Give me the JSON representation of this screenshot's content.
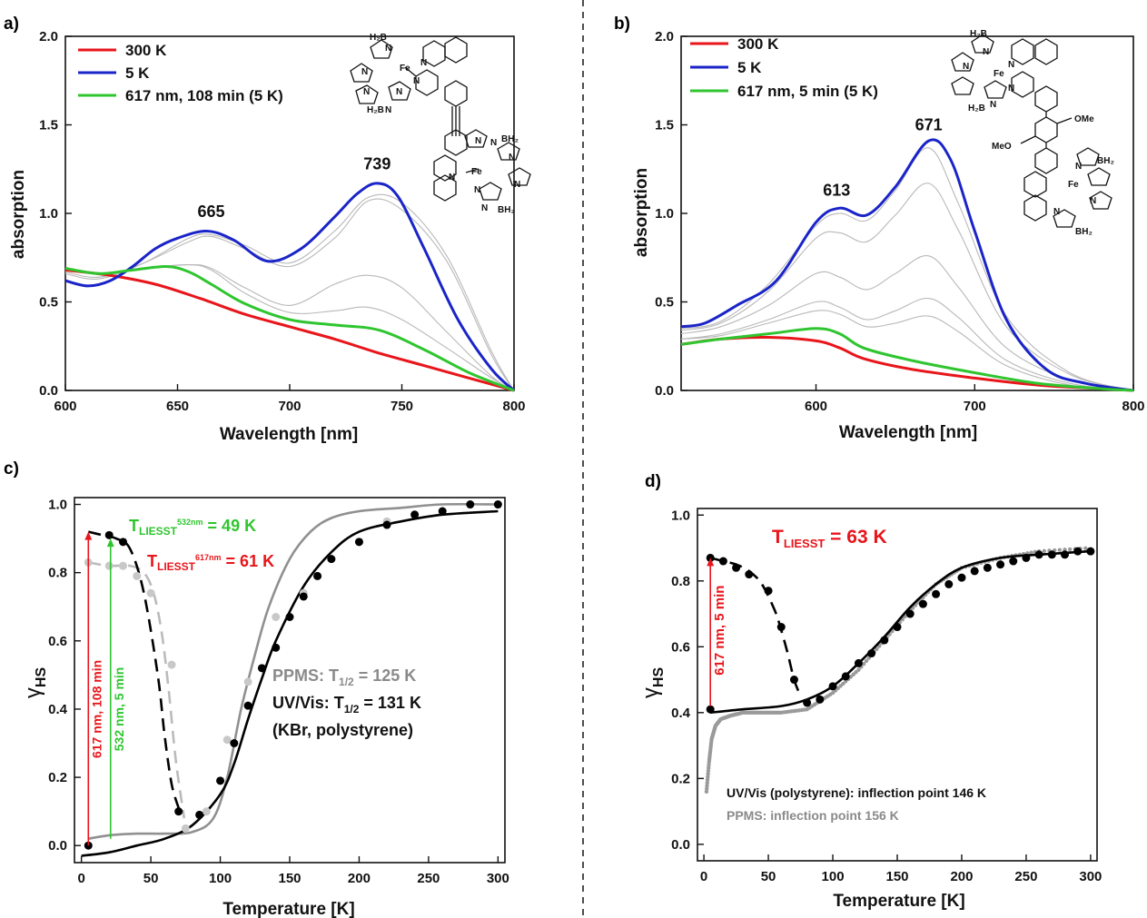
{
  "chart_data": [
    {
      "id": "a",
      "type": "line",
      "panel_label": "a)",
      "xlabel": "Wavelength [nm]",
      "ylabel": "absorption",
      "xlim": [
        600,
        800
      ],
      "ylim": [
        0,
        2.0
      ],
      "xticks": [
        600,
        650,
        700,
        750,
        800
      ],
      "yticks": [
        0.0,
        0.5,
        1.0,
        1.5,
        2.0
      ],
      "legend_position": "top-left",
      "series": [
        {
          "name": "300 K",
          "color": "#e8151b",
          "x": [
            600,
            620,
            640,
            660,
            680,
            700,
            720,
            740,
            760,
            780,
            800
          ],
          "y": [
            0.68,
            0.65,
            0.6,
            0.52,
            0.43,
            0.36,
            0.29,
            0.21,
            0.14,
            0.07,
            0.0
          ]
        },
        {
          "name": "5 K",
          "color": "#1a24c8",
          "x": [
            600,
            610,
            620,
            630,
            640,
            650,
            663,
            675,
            690,
            705,
            720,
            730,
            739,
            748,
            760,
            775,
            790,
            800
          ],
          "y": [
            0.62,
            0.59,
            0.62,
            0.7,
            0.8,
            0.86,
            0.9,
            0.85,
            0.73,
            0.8,
            0.98,
            1.11,
            1.17,
            1.1,
            0.8,
            0.4,
            0.12,
            0.0
          ]
        },
        {
          "name": "617 nm, 108 min (5 K)",
          "color": "#2fc52f",
          "x": [
            600,
            615,
            630,
            645,
            655,
            665,
            680,
            700,
            720,
            740,
            760,
            780,
            800
          ],
          "y": [
            0.69,
            0.66,
            0.68,
            0.7,
            0.67,
            0.6,
            0.49,
            0.4,
            0.37,
            0.34,
            0.23,
            0.1,
            0.0
          ]
        },
        {
          "name": "",
          "color": "#b8b8b8",
          "x": [
            600,
            615,
            635,
            655,
            665,
            680,
            700,
            720,
            735,
            750,
            770,
            790,
            800
          ],
          "y": [
            0.69,
            0.66,
            0.69,
            0.71,
            0.69,
            0.58,
            0.48,
            0.6,
            0.65,
            0.58,
            0.33,
            0.08,
            0.0
          ]
        },
        {
          "name": "",
          "color": "#b8b8b8",
          "x": [
            600,
            615,
            635,
            655,
            665,
            680,
            700,
            720,
            735,
            750,
            770,
            790,
            800
          ],
          "y": [
            0.68,
            0.66,
            0.69,
            0.71,
            0.68,
            0.55,
            0.44,
            0.45,
            0.47,
            0.4,
            0.24,
            0.07,
            0.0
          ]
        },
        {
          "name": "",
          "color": "#b8b8b8",
          "x": [
            600,
            615,
            635,
            655,
            665,
            680,
            700,
            720,
            735,
            750,
            770,
            790,
            800
          ],
          "y": [
            0.67,
            0.64,
            0.72,
            0.84,
            0.87,
            0.8,
            0.7,
            0.86,
            1.07,
            1.02,
            0.73,
            0.2,
            0.0
          ]
        },
        {
          "name": "",
          "color": "#b8b8b8",
          "x": [
            600,
            615,
            635,
            655,
            665,
            680,
            700,
            720,
            735,
            750,
            770,
            790,
            800
          ],
          "y": [
            0.66,
            0.63,
            0.72,
            0.86,
            0.88,
            0.82,
            0.72,
            0.9,
            1.09,
            1.06,
            0.76,
            0.22,
            0.0
          ]
        }
      ],
      "annotations": [
        {
          "text": "665",
          "x": 665,
          "y": 0.98
        },
        {
          "text": "739",
          "x": 739,
          "y": 1.25
        }
      ]
    },
    {
      "id": "b",
      "type": "line",
      "panel_label": "b)",
      "xlabel": "Wavelength [nm]",
      "ylabel": "absorption",
      "xlim": [
        515,
        800
      ],
      "ylim": [
        0,
        2.0
      ],
      "xticks": [
        600,
        700,
        800
      ],
      "yticks": [
        0.0,
        0.5,
        1.0,
        1.5,
        2.0
      ],
      "legend_position": "top-left",
      "series": [
        {
          "name": "300 K",
          "color": "#e8151b",
          "x": [
            515,
            540,
            570,
            600,
            615,
            630,
            660,
            700,
            740,
            780,
            800
          ],
          "y": [
            0.26,
            0.29,
            0.3,
            0.28,
            0.24,
            0.18,
            0.12,
            0.07,
            0.03,
            0.01,
            0.0
          ]
        },
        {
          "name": "5 K",
          "color": "#1a24c8",
          "x": [
            515,
            530,
            550,
            575,
            600,
            615,
            632,
            650,
            671,
            685,
            700,
            720,
            745,
            770,
            800
          ],
          "y": [
            0.36,
            0.38,
            0.48,
            0.62,
            0.95,
            1.03,
            0.99,
            1.15,
            1.41,
            1.3,
            0.9,
            0.4,
            0.12,
            0.04,
            0.0
          ]
        },
        {
          "name": "617 nm, 5 min (5 K)",
          "color": "#2fc52f",
          "x": [
            515,
            540,
            570,
            600,
            615,
            630,
            660,
            700,
            740,
            780,
            800
          ],
          "y": [
            0.26,
            0.29,
            0.32,
            0.35,
            0.32,
            0.24,
            0.17,
            0.1,
            0.04,
            0.01,
            0.0
          ]
        },
        {
          "name": "",
          "color": "#b8b8b8",
          "x": [
            515,
            540,
            570,
            600,
            615,
            632,
            650,
            671,
            690,
            720,
            760,
            800
          ],
          "y": [
            0.29,
            0.31,
            0.38,
            0.45,
            0.43,
            0.36,
            0.38,
            0.42,
            0.33,
            0.14,
            0.03,
            0.0
          ]
        },
        {
          "name": "",
          "color": "#b8b8b8",
          "x": [
            515,
            540,
            570,
            600,
            615,
            632,
            650,
            671,
            690,
            720,
            760,
            800
          ],
          "y": [
            0.29,
            0.32,
            0.4,
            0.5,
            0.47,
            0.4,
            0.45,
            0.52,
            0.41,
            0.17,
            0.04,
            0.0
          ]
        },
        {
          "name": "",
          "color": "#b8b8b8",
          "x": [
            515,
            540,
            570,
            600,
            615,
            632,
            650,
            671,
            690,
            720,
            760,
            800
          ],
          "y": [
            0.32,
            0.36,
            0.48,
            0.66,
            0.64,
            0.57,
            0.66,
            0.76,
            0.58,
            0.24,
            0.06,
            0.0
          ]
        },
        {
          "name": "",
          "color": "#b8b8b8",
          "x": [
            515,
            540,
            570,
            600,
            615,
            632,
            650,
            671,
            690,
            720,
            760,
            800
          ],
          "y": [
            0.34,
            0.38,
            0.56,
            0.86,
            0.89,
            0.84,
            0.99,
            1.17,
            0.9,
            0.36,
            0.09,
            0.0
          ]
        },
        {
          "name": "",
          "color": "#b8b8b8",
          "x": [
            515,
            540,
            570,
            600,
            615,
            632,
            650,
            671,
            690,
            720,
            760,
            800
          ],
          "y": [
            0.35,
            0.39,
            0.6,
            0.93,
            1.0,
            0.96,
            1.13,
            1.37,
            1.05,
            0.42,
            0.1,
            0.0
          ]
        }
      ],
      "annotations": [
        {
          "text": "613",
          "x": 613,
          "y": 1.1
        },
        {
          "text": "671",
          "x": 671,
          "y": 1.47
        }
      ]
    },
    {
      "id": "c",
      "type": "scatter",
      "panel_label": "c)",
      "xlabel": "Temperature [K]",
      "ylabel": "γ",
      "ylabel_sub": "HS",
      "xlim": [
        -5,
        305
      ],
      "ylim": [
        -0.05,
        1.02
      ],
      "xticks": [
        0,
        50,
        100,
        150,
        200,
        250,
        300
      ],
      "yticks": [
        0.0,
        0.2,
        0.4,
        0.6,
        0.8,
        1.0
      ],
      "series": [
        {
          "name": "UV/Vis points",
          "color": "#000000",
          "x": [
            5,
            20,
            30,
            70,
            85,
            100,
            110,
            120,
            130,
            140,
            150,
            160,
            170,
            180,
            200,
            220,
            240,
            260,
            280,
            300
          ],
          "y": [
            0.0,
            0.91,
            0.89,
            0.1,
            0.09,
            0.19,
            0.3,
            0.41,
            0.52,
            0.58,
            0.67,
            0.73,
            0.79,
            0.84,
            0.89,
            0.94,
            0.97,
            0.98,
            1.0,
            1.0
          ]
        },
        {
          "name": "PPMS points",
          "color": "#c8c8c8",
          "x": [
            5,
            20,
            30,
            40,
            50,
            65,
            75,
            90,
            105,
            120,
            140,
            160,
            180,
            200,
            220
          ],
          "y": [
            0.83,
            0.82,
            0.82,
            0.79,
            0.74,
            0.53,
            0.05,
            0.1,
            0.31,
            0.48,
            0.67,
            0.74,
            0.84,
            0.89,
            0.95
          ]
        },
        {
          "name": "UV/Vis fit",
          "color": "#000000",
          "x": [
            0,
            20,
            40,
            60,
            80,
            100,
            110,
            120,
            130,
            140,
            160,
            180,
            200,
            230,
            260,
            300
          ],
          "y": [
            -0.03,
            -0.02,
            0.0,
            0.02,
            0.06,
            0.15,
            0.24,
            0.37,
            0.49,
            0.6,
            0.76,
            0.86,
            0.92,
            0.95,
            0.97,
            0.98
          ]
        },
        {
          "name": "PPMS curve",
          "color": "#909090",
          "x": [
            5,
            20,
            40,
            60,
            80,
            95,
            105,
            115,
            125,
            135,
            150,
            165,
            180,
            200,
            230,
            260,
            300
          ],
          "y": [
            0.02,
            0.03,
            0.035,
            0.035,
            0.04,
            0.08,
            0.2,
            0.4,
            0.56,
            0.7,
            0.84,
            0.92,
            0.96,
            0.98,
            0.99,
            1.0,
            1.0
          ]
        },
        {
          "name": "LIESST 617 nm",
          "color": "#000000",
          "x": [
            5,
            15,
            25,
            35,
            45,
            55,
            60,
            65,
            70
          ],
          "y": [
            0.92,
            0.91,
            0.9,
            0.87,
            0.74,
            0.5,
            0.32,
            0.18,
            0.11
          ]
        },
        {
          "name": "LIESST 532 nm",
          "color": "#bbbbbb",
          "x": [
            5,
            20,
            35,
            45,
            52,
            58,
            63,
            68,
            74
          ],
          "y": [
            0.83,
            0.82,
            0.82,
            0.8,
            0.74,
            0.62,
            0.45,
            0.25,
            0.08
          ]
        }
      ],
      "arrows": [
        {
          "x": 5,
          "y_from": 0.0,
          "y_to": 0.92,
          "color": "#e8151b",
          "label": "617 nm, 108 min"
        },
        {
          "x": 21,
          "y_from": 0.02,
          "y_to": 0.9,
          "color": "#2fc52f",
          "label": "532 nm, 5 min"
        }
      ],
      "texts": {
        "liesst_green_pre": "T",
        "liesst_green_sub": "LIESST",
        "liesst_green_sup": "532nm",
        "liesst_green_post": " = 49 K",
        "liesst_red_pre": "T",
        "liesst_red_sub": "LIESST",
        "liesst_red_sup": "617nm",
        "liesst_red_post": " = 61 K",
        "ppms_pre": "PPMS:  T",
        "ppms_sub": "1/2",
        "ppms_post": " = 125 K",
        "uvvis_pre": "UV/Vis: T",
        "uvvis_sub": "1/2",
        "uvvis_post": " = 131 K",
        "matrix": "(KBr, polystyrene)"
      }
    },
    {
      "id": "d",
      "type": "scatter",
      "panel_label": "d)",
      "xlabel": "Temperature [K]",
      "ylabel": "γ",
      "ylabel_sub": "HS",
      "xlim": [
        -5,
        305
      ],
      "ylim": [
        -0.05,
        1.02
      ],
      "xticks": [
        0,
        50,
        100,
        150,
        200,
        250,
        300
      ],
      "yticks": [
        0.0,
        0.2,
        0.4,
        0.6,
        0.8,
        1.0
      ],
      "series": [
        {
          "name": "UV/Vis points",
          "color": "#000000",
          "x": [
            5,
            15,
            25,
            35,
            50,
            60,
            70,
            80,
            90,
            100,
            110,
            120,
            130,
            140,
            150,
            160,
            170,
            180,
            190,
            200,
            210,
            220,
            230,
            240,
            250,
            260,
            270,
            280,
            290,
            300
          ],
          "y": [
            0.87,
            0.86,
            0.84,
            0.82,
            0.77,
            0.66,
            0.5,
            0.43,
            0.44,
            0.48,
            0.51,
            0.55,
            0.58,
            0.62,
            0.66,
            0.7,
            0.73,
            0.76,
            0.79,
            0.81,
            0.83,
            0.84,
            0.85,
            0.86,
            0.87,
            0.88,
            0.88,
            0.88,
            0.89,
            0.89
          ]
        },
        {
          "name": "LIESST dashed",
          "color": "#000000",
          "x": [
            5,
            15,
            25,
            35,
            45,
            55,
            60,
            65,
            70,
            75
          ],
          "y": [
            0.87,
            0.86,
            0.85,
            0.83,
            0.79,
            0.71,
            0.65,
            0.58,
            0.5,
            0.45
          ]
        },
        {
          "name": "UV/Vis fit",
          "color": "#000000",
          "x": [
            5,
            30,
            60,
            80,
            100,
            120,
            140,
            160,
            180,
            200,
            230,
            260,
            300
          ],
          "y": [
            0.4,
            0.41,
            0.42,
            0.44,
            0.48,
            0.55,
            0.63,
            0.72,
            0.79,
            0.84,
            0.87,
            0.88,
            0.89
          ]
        },
        {
          "name": "PPMS curve",
          "color": "#9a9a9a",
          "x": [
            2,
            4,
            6,
            9,
            13,
            20,
            30,
            45,
            60,
            80,
            100,
            120,
            140,
            160,
            180,
            200,
            230,
            260,
            300
          ],
          "y": [
            0.16,
            0.25,
            0.32,
            0.36,
            0.38,
            0.39,
            0.4,
            0.4,
            0.4,
            0.41,
            0.46,
            0.53,
            0.62,
            0.71,
            0.79,
            0.84,
            0.87,
            0.89,
            0.9
          ]
        },
        {
          "name": "UV/Vis start point",
          "color": "#000000",
          "x": [
            5
          ],
          "y": [
            0.41
          ]
        }
      ],
      "arrows": [
        {
          "x": 5,
          "y_from": 0.42,
          "y_to": 0.87,
          "color": "#e8151b",
          "label": "617 nm, 5 min"
        }
      ],
      "texts": {
        "liesst_pre": "T",
        "liesst_sub": "LIESST",
        "liesst_post": " = 63 K",
        "uvvis_note": "UV/Vis (polystyrene): inflection point 146 K",
        "ppms_note": "PPMS: inflection point 156 K"
      }
    }
  ],
  "molecules": {
    "a_labels": [
      "H₂B",
      "N",
      "N",
      "Fe",
      "N",
      "N",
      "N",
      "N",
      "H₂B",
      "N",
      "N",
      "N",
      "N",
      "BH₂",
      "Fe",
      "N",
      "N",
      "N",
      "N",
      "BH₂"
    ],
    "b_labels": [
      "H₂B",
      "N",
      "N",
      "Fe",
      "N",
      "N",
      "H₂B",
      "N",
      "OMe",
      "MeO",
      "N",
      "BH₂",
      "Fe",
      "N",
      "N",
      "BH₂"
    ]
  }
}
